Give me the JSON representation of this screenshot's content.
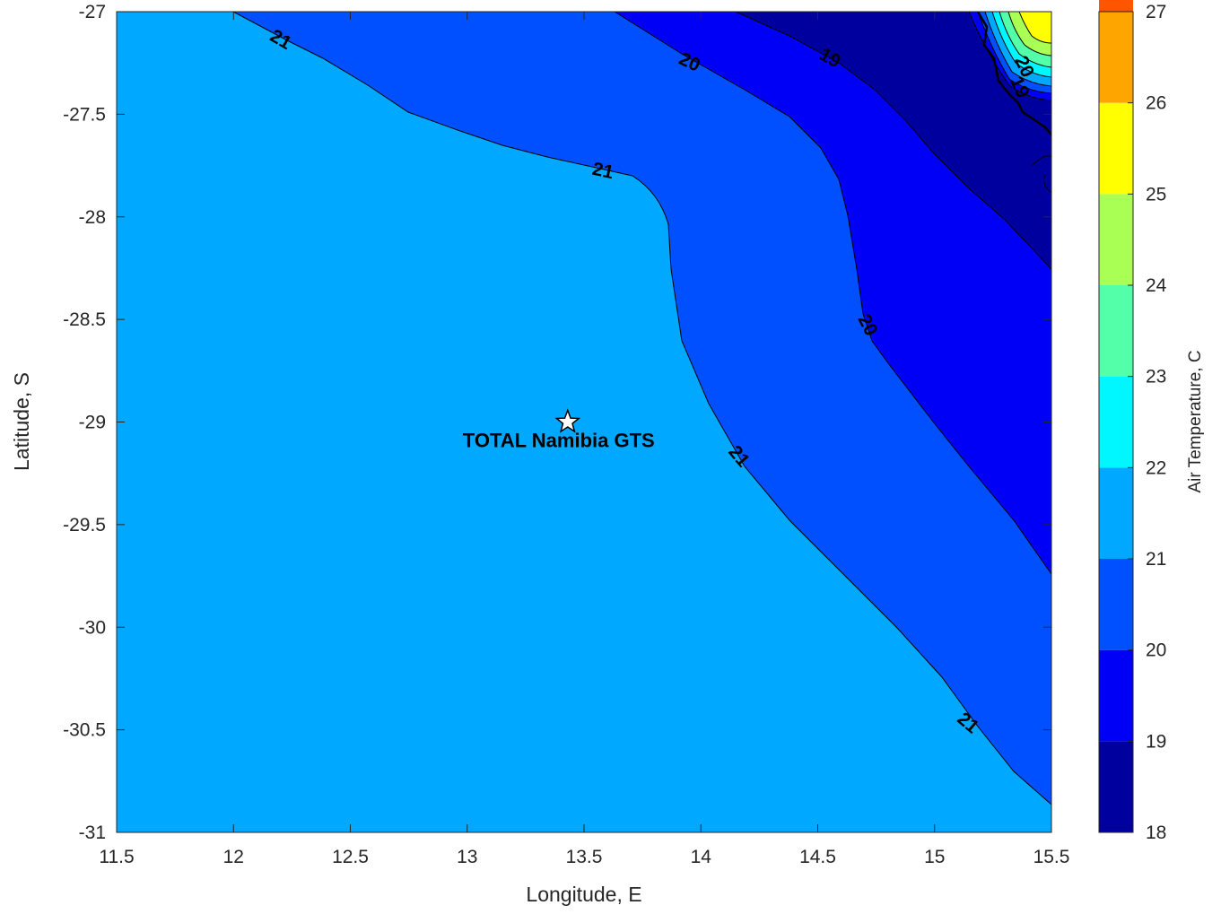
{
  "chart_data": {
    "type": "contour",
    "title": "",
    "xlabel": "Longitude, E",
    "ylabel": "Latitude, S",
    "xlim": [
      11.5,
      15.5
    ],
    "ylim": [
      -31,
      -27
    ],
    "xticks": [
      "11.5",
      "12",
      "12.5",
      "13",
      "13.5",
      "14",
      "14.5",
      "15",
      "15.5"
    ],
    "yticks": [
      "-27",
      "-27.5",
      "-28",
      "-28.5",
      "-29",
      "-29.5",
      "-30",
      "-30.5",
      "-31"
    ],
    "colorbar": {
      "label": "Air Temperature, C",
      "range": [
        18,
        27
      ],
      "ticks": [
        "18",
        "19",
        "20",
        "21",
        "22",
        "23",
        "24",
        "25",
        "26",
        "27"
      ],
      "colors": [
        "#00009f",
        "#0000f7",
        "#0050ff",
        "#00a9ff",
        "#00f7ff",
        "#53ffa9",
        "#a9ff53",
        "#ffff00",
        "#ffa500",
        "#ff5500"
      ]
    },
    "contour_levels": [
      19,
      20,
      21
    ],
    "contour_labels": [
      {
        "text": "21",
        "lon": 12.2,
        "lat": -27.14,
        "angle": 30
      },
      {
        "text": "20",
        "lon": 13.95,
        "lat": -27.25,
        "angle": 25
      },
      {
        "text": "19",
        "lon": 14.55,
        "lat": -27.23,
        "angle": 30
      },
      {
        "text": "21",
        "lon": 13.58,
        "lat": -27.78,
        "angle": 12
      },
      {
        "text": "20",
        "lon": 14.71,
        "lat": -28.53,
        "angle": 62
      },
      {
        "text": "21",
        "lon": 14.16,
        "lat": -29.17,
        "angle": 50
      },
      {
        "text": "21",
        "lon": 15.14,
        "lat": -30.47,
        "angle": 40
      },
      {
        "text": "20",
        "lon": 15.38,
        "lat": -27.27,
        "angle": 65
      },
      {
        "text": "19",
        "lon": 15.36,
        "lat": -27.37,
        "angle": 65
      }
    ],
    "station": {
      "label": "TOTAL Namibia GTS",
      "lon": 13.43,
      "lat": -29.0
    }
  }
}
